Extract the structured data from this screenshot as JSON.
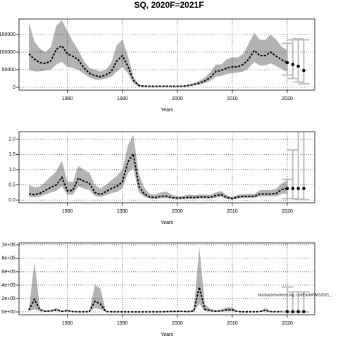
{
  "chart_data": [
    {
      "type": "line",
      "title": "SQ, 2020F=2021F",
      "x_label": "Years",
      "x": [
        1973,
        1974,
        1975,
        1976,
        1977,
        1978,
        1979,
        1980,
        1981,
        1982,
        1983,
        1984,
        1985,
        1986,
        1987,
        1988,
        1989,
        1990,
        1991,
        1992,
        1993,
        1994,
        1995,
        1996,
        1997,
        1998,
        1999,
        2000,
        2001,
        2002,
        2003,
        2004,
        2005,
        2006,
        2007,
        2008,
        2009,
        2010,
        2011,
        2012,
        2013,
        2014,
        2015,
        2016,
        2017,
        2018,
        2019,
        2020
      ],
      "values": [
        95000,
        80000,
        70000,
        68000,
        75000,
        108000,
        118000,
        95000,
        88000,
        78000,
        55000,
        40000,
        33000,
        30000,
        35000,
        45000,
        75000,
        90000,
        60000,
        20000,
        5000,
        3000,
        3000,
        3000,
        3000,
        3000,
        3000,
        3000,
        3000,
        5000,
        8000,
        12000,
        18000,
        28000,
        45000,
        48000,
        55000,
        58000,
        58000,
        65000,
        80000,
        105000,
        90000,
        90000,
        100000,
        88000,
        78000,
        70000
      ],
      "upper": [
        185000,
        130000,
        110000,
        100000,
        115000,
        175000,
        190000,
        160000,
        130000,
        105000,
        75000,
        55000,
        50000,
        45000,
        50000,
        70000,
        120000,
        135000,
        90000,
        30000,
        8000,
        5000,
        4000,
        4000,
        4000,
        4000,
        4000,
        4000,
        4000,
        7000,
        12000,
        18000,
        28000,
        42000,
        65000,
        65000,
        80000,
        85000,
        85000,
        95000,
        125000,
        155000,
        135000,
        135000,
        150000,
        135000,
        115000,
        105000
      ],
      "lower": [
        50000,
        45000,
        45000,
        48000,
        50000,
        65000,
        72000,
        58000,
        55000,
        50000,
        38000,
        28000,
        22000,
        22000,
        25000,
        30000,
        45000,
        58000,
        40000,
        12000,
        2000,
        1000,
        1000,
        1000,
        1000,
        1000,
        1000,
        1000,
        1500,
        3000,
        5000,
        8000,
        12000,
        18000,
        30000,
        32000,
        38000,
        40000,
        42000,
        45000,
        55000,
        72000,
        62000,
        62000,
        68000,
        60000,
        52000,
        45000
      ],
      "projection": {
        "x": [
          2020,
          2021,
          2022,
          2023
        ],
        "values": [
          70000,
          65000,
          60000,
          48000
        ],
        "lower": [
          35000,
          25000,
          15000,
          10000
        ],
        "upper": [
          125000,
          135000,
          138000,
          135000
        ]
      },
      "xlim": [
        1971.2,
        2025
      ],
      "xticks": [
        1980,
        1990,
        2000,
        2010,
        2020
      ],
      "ylim": [
        -8000,
        194000
      ],
      "yticks": [
        0,
        50000,
        100000,
        150000
      ],
      "grid": true,
      "band_color": "#b3b3b3",
      "line_color": "#000000",
      "bar_color": "#bdbdbd"
    },
    {
      "type": "line",
      "x_label": "Years",
      "x": [
        1973,
        1974,
        1975,
        1976,
        1977,
        1978,
        1979,
        1980,
        1981,
        1982,
        1983,
        1984,
        1985,
        1986,
        1987,
        1988,
        1989,
        1990,
        1991,
        1992,
        1993,
        1994,
        1995,
        1996,
        1997,
        1998,
        1999,
        2000,
        2001,
        2002,
        2003,
        2004,
        2005,
        2006,
        2007,
        2008,
        2009,
        2010,
        2011,
        2012,
        2013,
        2014,
        2015,
        2016,
        2017,
        2018,
        2019,
        2020
      ],
      "values": [
        0.2,
        0.18,
        0.22,
        0.32,
        0.42,
        0.5,
        0.75,
        0.3,
        0.32,
        0.72,
        0.62,
        0.55,
        0.25,
        0.18,
        0.28,
        0.38,
        0.45,
        0.6,
        1.25,
        1.52,
        0.45,
        0.2,
        0.1,
        0.08,
        0.12,
        0.13,
        0.08,
        0.06,
        0.07,
        0.09,
        0.08,
        0.1,
        0.1,
        0.09,
        0.15,
        0.18,
        0.08,
        0.05,
        0.1,
        0.12,
        0.12,
        0.12,
        0.2,
        0.2,
        0.2,
        0.22,
        0.35,
        0.38
      ],
      "upper": [
        0.5,
        0.42,
        0.45,
        0.6,
        0.78,
        0.95,
        1.3,
        0.6,
        0.6,
        1.12,
        1.0,
        0.9,
        0.5,
        0.38,
        0.5,
        0.65,
        0.8,
        1.0,
        1.8,
        2.15,
        0.85,
        0.4,
        0.2,
        0.18,
        0.25,
        0.28,
        0.18,
        0.13,
        0.14,
        0.18,
        0.16,
        0.18,
        0.18,
        0.17,
        0.25,
        0.3,
        0.16,
        0.1,
        0.17,
        0.2,
        0.2,
        0.2,
        0.32,
        0.33,
        0.33,
        0.38,
        0.55,
        0.65
      ],
      "lower": [
        0.1,
        0.09,
        0.12,
        0.18,
        0.25,
        0.3,
        0.45,
        0.17,
        0.18,
        0.45,
        0.38,
        0.32,
        0.14,
        0.1,
        0.16,
        0.22,
        0.27,
        0.38,
        0.88,
        1.05,
        0.25,
        0.1,
        0.05,
        0.04,
        0.06,
        0.06,
        0.04,
        0.03,
        0.03,
        0.04,
        0.04,
        0.05,
        0.05,
        0.05,
        0.08,
        0.1,
        0.04,
        0.02,
        0.05,
        0.07,
        0.07,
        0.07,
        0.12,
        0.12,
        0.12,
        0.13,
        0.2,
        0.22
      ],
      "projection": {
        "x": [
          2020,
          2021,
          2022,
          2023
        ],
        "values": [
          0.38,
          0.38,
          0.38,
          0.38
        ],
        "lower": [
          0.05,
          0.05,
          0.03,
          0.02
        ],
        "upper": [
          0.68,
          1.65,
          2.6,
          3.0
        ]
      },
      "xlim": [
        1971.2,
        2025
      ],
      "xticks": [
        1980,
        1990,
        2000,
        2010,
        2020
      ],
      "ylim": [
        -0.09,
        2.25
      ],
      "yticks": [
        {
          "value": 0,
          "label": "0.0"
        },
        0.5,
        {
          "value": 1,
          "label": "1.0"
        },
        1.5,
        {
          "value": 2,
          "label": "2.0"
        }
      ],
      "grid": true,
      "band_color": "#b3b3b3",
      "line_color": "#000000",
      "bar_color": "#bdbdbd"
    },
    {
      "type": "line",
      "x_label": "Years",
      "annotation": "stockassessment.org, codEastWWG2021_",
      "x": [
        1973,
        1974,
        1975,
        1976,
        1977,
        1978,
        1979,
        1980,
        1981,
        1982,
        1983,
        1984,
        1985,
        1986,
        1987,
        1988,
        1989,
        1990,
        1991,
        1992,
        1993,
        1994,
        1995,
        1996,
        1997,
        1998,
        1999,
        2000,
        2001,
        2002,
        2003,
        2004,
        2005,
        2006,
        2007,
        2008,
        2009,
        2010,
        2011,
        2012,
        2013,
        2014,
        2015,
        2016,
        2017,
        2018,
        2019,
        2020
      ],
      "values": [
        30000,
        190000,
        30000,
        10000,
        15000,
        30000,
        10000,
        20000,
        5000,
        3000,
        3000,
        5000,
        160000,
        120000,
        5000,
        3000,
        3000,
        3000,
        2000,
        2000,
        2000,
        2000,
        2000,
        3000,
        3000,
        5000,
        8000,
        10000,
        8000,
        5000,
        15000,
        370000,
        40000,
        20000,
        10000,
        15000,
        30000,
        30000,
        5000,
        3000,
        3000,
        3000,
        5000,
        25000,
        5000,
        3000,
        5000,
        5000
      ],
      "upper": [
        50000,
        750000,
        60000,
        20000,
        30000,
        60000,
        20000,
        40000,
        10000,
        6000,
        6000,
        10000,
        400000,
        350000,
        10000,
        6000,
        6000,
        6000,
        4000,
        4000,
        4000,
        4000,
        4000,
        6000,
        6000,
        10000,
        15000,
        20000,
        15000,
        10000,
        40000,
        970000,
        120000,
        50000,
        25000,
        40000,
        70000,
        70000,
        10000,
        6000,
        6000,
        6000,
        10000,
        60000,
        10000,
        6000,
        10000,
        10000
      ],
      "lower": [
        15000,
        40000,
        15000,
        5000,
        7000,
        15000,
        5000,
        10000,
        2000,
        1000,
        1000,
        2000,
        60000,
        40000,
        2000,
        1000,
        1000,
        1000,
        1000,
        1000,
        1000,
        1000,
        1000,
        1000,
        1000,
        2000,
        4000,
        5000,
        4000,
        2000,
        5000,
        120000,
        10000,
        8000,
        4000,
        6000,
        12000,
        12000,
        2000,
        1000,
        1000,
        1000,
        2000,
        10000,
        2000,
        1000,
        2000,
        2000
      ],
      "projection": {
        "x": [
          2020,
          2021,
          2022,
          2023
        ],
        "values": [
          5000,
          5000,
          5000,
          5000
        ],
        "lower": [
          0,
          0,
          0,
          0
        ],
        "upper": [
          370000,
          300000,
          300000,
          300000
        ]
      },
      "xlim": [
        1971.2,
        2025
      ],
      "xticks": [
        1980,
        1990,
        2000,
        2010,
        2020
      ],
      "ylim": [
        -42000,
        1030000
      ],
      "yticks": [
        {
          "value": 0,
          "label": "0e+00"
        },
        {
          "value": 200000,
          "label": "2e+05"
        },
        {
          "value": 400000,
          "label": "4e+05"
        },
        {
          "value": 600000,
          "label": "6e+05"
        },
        {
          "value": 800000,
          "label": "8e+05"
        },
        {
          "value": 1000000,
          "label": "1e+06"
        }
      ],
      "grid": true,
      "band_color": "#b3b3b3",
      "line_color": "#000000",
      "bar_color": "#bdbdbd"
    }
  ]
}
